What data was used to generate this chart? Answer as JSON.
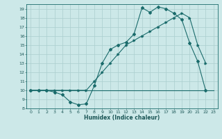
{
  "bg_color": "#cce8e8",
  "grid_color": "#aacece",
  "line_color": "#1a6b6b",
  "xlabel": "Humidex (Indice chaleur)",
  "ylim": [
    8,
    19.5
  ],
  "xlim": [
    -0.5,
    23.5
  ],
  "yticks": [
    8,
    9,
    10,
    11,
    12,
    13,
    14,
    15,
    16,
    17,
    18,
    19
  ],
  "xticks": [
    0,
    1,
    2,
    3,
    4,
    5,
    6,
    7,
    8,
    9,
    10,
    11,
    12,
    13,
    14,
    15,
    16,
    17,
    18,
    19,
    20,
    21,
    22,
    23
  ],
  "line1_x": [
    0,
    1,
    2,
    3,
    4,
    5,
    6,
    7,
    8,
    9,
    10,
    11,
    12,
    13,
    14,
    15,
    16,
    17,
    18,
    19,
    20,
    21,
    22,
    23
  ],
  "line1_y": [
    10,
    10,
    10,
    10,
    10,
    10,
    10,
    10,
    10,
    10,
    10,
    10,
    10,
    10,
    10,
    10,
    10,
    10,
    10,
    10,
    10,
    10,
    10,
    10
  ],
  "line2_x": [
    0,
    1,
    2,
    3,
    4,
    5,
    6,
    7,
    8,
    9,
    10,
    11,
    12,
    13,
    14,
    15,
    16,
    17,
    18,
    19,
    20,
    21,
    22
  ],
  "line2_y": [
    10,
    10,
    10,
    10,
    10,
    10,
    10,
    10,
    11,
    12,
    13,
    14,
    15,
    15.5,
    16,
    16.5,
    17,
    17.5,
    18,
    18.5,
    18,
    15,
    13
  ],
  "line3_x": [
    0,
    1,
    2,
    3,
    4,
    5,
    6,
    7,
    8,
    9,
    10,
    11,
    12,
    13,
    14,
    15,
    16,
    17,
    18,
    19,
    20,
    21,
    22
  ],
  "line3_y": [
    10,
    10,
    10,
    9.8,
    9.5,
    8.7,
    8.4,
    8.5,
    10.5,
    13,
    14.5,
    15,
    15.3,
    16.2,
    19.1,
    18.6,
    19.2,
    19.0,
    18.5,
    17.8,
    15.2,
    13.2,
    10
  ]
}
